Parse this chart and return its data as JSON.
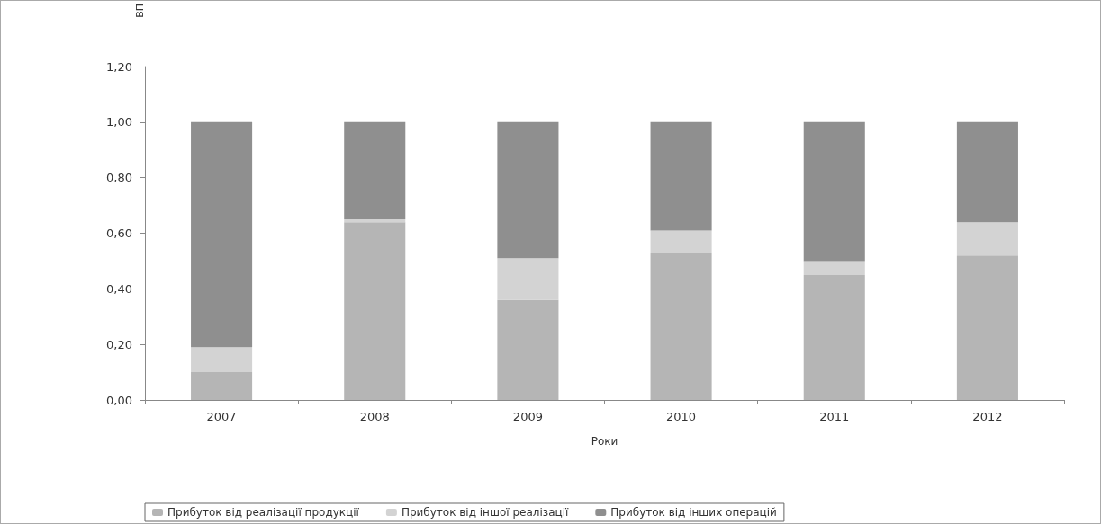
{
  "chart_data": {
    "type": "bar",
    "stacked": true,
    "xlabel": "Роки",
    "ylabel": "ВП",
    "categories": [
      "2007",
      "2008",
      "2009",
      "2010",
      "2011",
      "2012"
    ],
    "series": [
      {
        "name": "Прибуток від реалізації продукції",
        "color": "#b5b5b5",
        "values": [
          0.1,
          0.64,
          0.36,
          0.53,
          0.45,
          0.52
        ]
      },
      {
        "name": "Прибуток від іншої реалізації",
        "color": "#d3d3d3",
        "values": [
          0.09,
          0.01,
          0.15,
          0.08,
          0.05,
          0.12
        ]
      },
      {
        "name": "Прибуток від інших операцій",
        "color": "#8f8f8f",
        "values": [
          0.81,
          0.35,
          0.49,
          0.39,
          0.5,
          0.36
        ]
      }
    ],
    "ylim": [
      0,
      1.2
    ],
    "yticks": [
      {
        "value": 0,
        "label": "0,00"
      },
      {
        "value": 0.2,
        "label": "0,20"
      },
      {
        "value": 0.4,
        "label": "0,40"
      },
      {
        "value": 0.6,
        "label": "0,60"
      },
      {
        "value": 0.8,
        "label": "0,80"
      },
      {
        "value": 1,
        "label": "1,00"
      },
      {
        "value": 1.2,
        "label": "1,20"
      }
    ],
    "grid": false,
    "legend": "bottom"
  }
}
